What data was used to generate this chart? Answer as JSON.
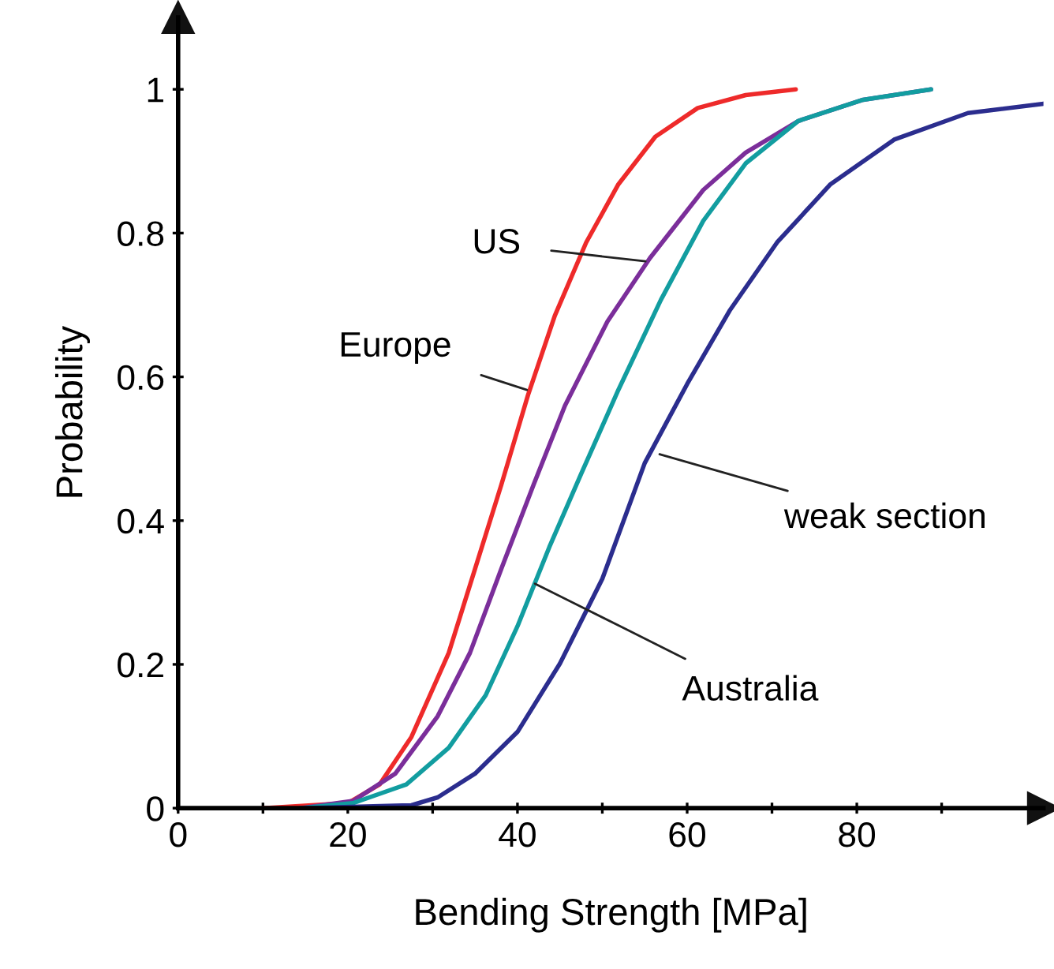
{
  "chart_data": {
    "type": "line",
    "xlabel": "Bending Strength [MPa]",
    "ylabel": "Probability",
    "xlim": [
      0,
      102
    ],
    "ylim": [
      0,
      1.1
    ],
    "xticks": [
      0,
      {
        "value": 10,
        "label": null
      },
      20,
      {
        "value": 30,
        "label": null
      },
      40,
      {
        "value": 50,
        "label": null
      },
      60,
      {
        "value": 70,
        "label": null
      },
      80,
      {
        "value": 90,
        "label": null
      }
    ],
    "yticks": [
      0,
      0.2,
      0.4,
      0.6,
      0.8,
      1
    ],
    "grid": false,
    "legend": false,
    "marker": "none",
    "line_style": "solid",
    "series": [
      {
        "color": "#ee2a2a",
        "x": [
          10,
          20,
          23.75,
          27.5,
          31.9,
          35,
          38.1,
          41.25,
          44.4,
          48.1,
          51.9,
          56.25,
          61.25,
          66.9,
          72.8
        ],
        "values": [
          0,
          0.007,
          0.033,
          0.099,
          0.216,
          0.333,
          0.45,
          0.575,
          0.685,
          0.787,
          0.868,
          0.934,
          0.974,
          0.992,
          1.0
        ]
      },
      {
        "color": "#7b2e9a",
        "x": [
          14.4,
          20.6,
          25.6,
          30.6,
          34.4,
          38.1,
          41.9,
          45.6,
          50.6,
          55.6,
          61.9,
          66.9,
          73.1,
          80.6,
          88.75
        ],
        "values": [
          0,
          0.01,
          0.048,
          0.128,
          0.216,
          0.333,
          0.45,
          0.56,
          0.677,
          0.765,
          0.86,
          0.912,
          0.956,
          0.985,
          1.0
        ]
      },
      {
        "color": "#129da0",
        "x": [
          14.4,
          20.6,
          26.9,
          31.9,
          36.25,
          40,
          43.75,
          47.5,
          51.9,
          56.9,
          61.9,
          66.9,
          73.1,
          80.6,
          88.75
        ],
        "values": [
          0,
          0.007,
          0.033,
          0.084,
          0.157,
          0.253,
          0.363,
          0.465,
          0.582,
          0.707,
          0.817,
          0.897,
          0.956,
          0.985,
          1.0
        ]
      },
      {
        "color": "#2b2d8e",
        "x": [
          14.4,
          27.5,
          30.6,
          35,
          40,
          45,
          50,
          55,
          60,
          65,
          70.6,
          76.9,
          84.4,
          93.1,
          102
        ],
        "values": [
          0,
          0.004,
          0.015,
          0.048,
          0.106,
          0.201,
          0.319,
          0.48,
          0.59,
          0.692,
          0.787,
          0.868,
          0.93,
          0.967,
          0.98
        ]
      }
    ],
    "annotations": [
      {
        "text": "US",
        "x": 55.6,
        "y": 0.76
      },
      {
        "text": "Europe",
        "x": 41.6,
        "y": 0.58
      },
      {
        "text": "Australia",
        "x": 41.6,
        "y": 0.315
      },
      {
        "text": "weak section",
        "x": 56.25,
        "y": 0.494
      }
    ]
  }
}
